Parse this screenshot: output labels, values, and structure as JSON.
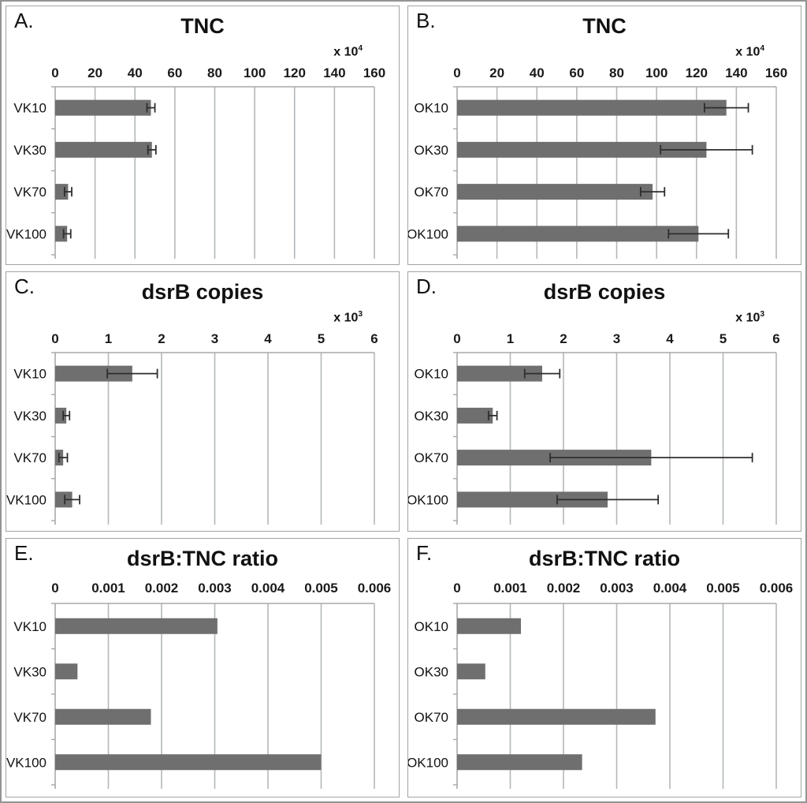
{
  "colors": {
    "bar_fill": "#6f6f6f",
    "gridline": "#b4b8ba",
    "axis_line": "#a8a8a8",
    "error_bar": "#2e2e2e",
    "panel_border": "#a3a3a3",
    "figure_border": "#949494",
    "text": "#111111"
  },
  "chart_data": [
    {
      "type": "bar",
      "orientation": "horizontal",
      "panel_label": "A.",
      "title": "TNC",
      "scale_base": "x 10",
      "scale_exp": "4",
      "categories": [
        "VK10",
        "VK30",
        "VK70",
        "VK100"
      ],
      "values": [
        48,
        48.5,
        6.5,
        6
      ],
      "errors": [
        2,
        2,
        1.8,
        1.8
      ],
      "xlim": [
        0,
        160
      ],
      "tick_values": [
        0,
        20,
        40,
        60,
        80,
        100,
        120,
        140,
        160
      ],
      "tick_labels": [
        "0",
        "20",
        "40",
        "60",
        "80",
        "100",
        "120",
        "140",
        "160"
      ],
      "grid": true,
      "legend": "none"
    },
    {
      "type": "bar",
      "orientation": "horizontal",
      "panel_label": "B.",
      "title": "TNC",
      "scale_base": "x 10",
      "scale_exp": "4",
      "categories": [
        "OK10",
        "OK30",
        "OK70",
        "OK100"
      ],
      "values": [
        135,
        125,
        98,
        121
      ],
      "errors": [
        11,
        23,
        6,
        15
      ],
      "xlim": [
        0,
        160
      ],
      "tick_values": [
        0,
        20,
        40,
        60,
        80,
        100,
        120,
        140,
        160
      ],
      "tick_labels": [
        "0",
        "20",
        "40",
        "60",
        "80",
        "100",
        "120",
        "140",
        "160"
      ],
      "grid": true,
      "legend": "none"
    },
    {
      "type": "bar",
      "orientation": "horizontal",
      "panel_label": "C.",
      "title": "dsrB copies",
      "scale_base": "x 10",
      "scale_exp": "3",
      "categories": [
        "VK10",
        "VK30",
        "VK70",
        "VK100"
      ],
      "values": [
        1.45,
        0.21,
        0.15,
        0.32
      ],
      "errors": [
        0.47,
        0.06,
        0.08,
        0.14
      ],
      "xlim": [
        0,
        6
      ],
      "tick_values": [
        0,
        1,
        2,
        3,
        4,
        5,
        6
      ],
      "tick_labels": [
        "0",
        "1",
        "2",
        "3",
        "4",
        "5",
        "6"
      ],
      "grid": true,
      "legend": "none"
    },
    {
      "type": "bar",
      "orientation": "horizontal",
      "panel_label": "D.",
      "title": "dsrB copies",
      "scale_base": "x 10",
      "scale_exp": "3",
      "categories": [
        "OK10",
        "OK30",
        "OK70",
        "OK100"
      ],
      "values": [
        1.6,
        0.67,
        3.65,
        2.83
      ],
      "errors": [
        0.33,
        0.08,
        1.9,
        0.95
      ],
      "xlim": [
        0,
        6
      ],
      "tick_values": [
        0,
        1,
        2,
        3,
        4,
        5,
        6
      ],
      "tick_labels": [
        "0",
        "1",
        "2",
        "3",
        "4",
        "5",
        "6"
      ],
      "grid": true,
      "legend": "none"
    },
    {
      "type": "bar",
      "orientation": "horizontal",
      "panel_label": "E.",
      "title": "dsrB:TNC ratio",
      "scale_base": "",
      "scale_exp": "",
      "categories": [
        "VK10",
        "VK30",
        "VK70",
        "VK100"
      ],
      "values": [
        0.00305,
        0.00042,
        0.0018,
        0.005
      ],
      "errors": null,
      "xlim": [
        0,
        0.006
      ],
      "tick_values": [
        0,
        0.001,
        0.002,
        0.003,
        0.004,
        0.005,
        0.006
      ],
      "tick_labels": [
        "0",
        "0.001",
        "0.002",
        "0.003",
        "0.004",
        "0.005",
        "0.006"
      ],
      "grid": true,
      "legend": "none"
    },
    {
      "type": "bar",
      "orientation": "horizontal",
      "panel_label": "F.",
      "title": "dsrB:TNC ratio",
      "scale_base": "",
      "scale_exp": "",
      "categories": [
        "OK10",
        "OK30",
        "OK70",
        "OK100"
      ],
      "values": [
        0.0012,
        0.00053,
        0.00373,
        0.00235
      ],
      "errors": null,
      "xlim": [
        0,
        0.006
      ],
      "tick_values": [
        0,
        0.001,
        0.002,
        0.003,
        0.004,
        0.005,
        0.006
      ],
      "tick_labels": [
        "0",
        "0.001",
        "0.002",
        "0.003",
        "0.004",
        "0.005",
        "0.006"
      ],
      "grid": true,
      "legend": "none"
    }
  ]
}
